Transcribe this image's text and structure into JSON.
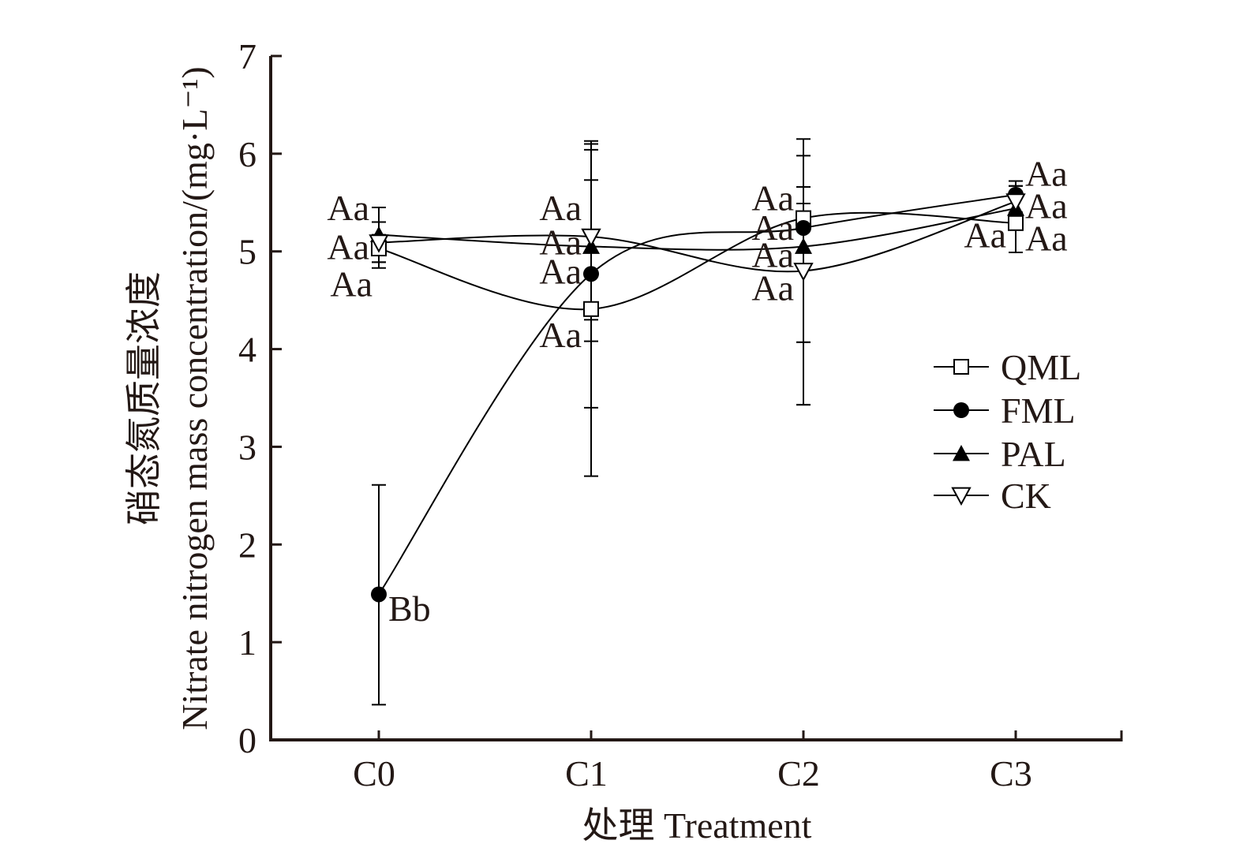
{
  "chart_data": {
    "type": "line",
    "title": "",
    "xlabel": "处理 Treatment",
    "ylabel_cn": "硝态氮质量浓度",
    "ylabel_en": "Nitrate nitrogen mass concentration/(mg·L⁻¹)",
    "categories": [
      "C0",
      "C1",
      "C2",
      "C3"
    ],
    "ylim": [
      0,
      7
    ],
    "yticks": [
      "0",
      "1",
      "2",
      "3",
      "4",
      "5",
      "6",
      "7"
    ],
    "grid": false,
    "legend_position": "right-middle",
    "series": [
      {
        "name": "QML",
        "marker": "open-square",
        "values": [
          5.03,
          4.41,
          5.34,
          5.29
        ],
        "err_low": [
          4.89,
          4.3,
          4.07,
          4.99
        ],
        "err_high": [
          5.17,
          6.1,
          5.98,
          5.4
        ],
        "labels": [
          "Aa",
          "Aa",
          "Aa",
          "Aa"
        ]
      },
      {
        "name": "FML",
        "marker": "filled-circle",
        "values": [
          1.49,
          4.77,
          5.24,
          5.58
        ],
        "err_low": [
          0.36,
          3.4,
          3.43,
          5.36
        ],
        "err_high": [
          2.61,
          6.13,
          6.15,
          5.72
        ],
        "labels": [
          "Bb",
          "Aa",
          "Aa",
          "Aa"
        ]
      },
      {
        "name": "PAL",
        "marker": "filled-triangle-up",
        "values": [
          5.17,
          5.05,
          5.05,
          5.44
        ],
        "err_low": [
          4.83,
          2.7,
          4.07,
          5.36
        ],
        "err_high": [
          5.45,
          6.04,
          5.49,
          5.67
        ],
        "labels": [
          "Aa",
          "Aa",
          "Aa",
          "Aa"
        ]
      },
      {
        "name": "CK",
        "marker": "open-triangle-down",
        "values": [
          5.09,
          5.15,
          4.8,
          5.51
        ],
        "err_low": [
          4.89,
          4.08,
          3.43,
          4.99
        ],
        "err_high": [
          5.3,
          5.73,
          5.66,
          5.67
        ],
        "labels": [
          "Aa",
          "Aa",
          "Aa",
          "Aa"
        ]
      }
    ],
    "annotations": [
      {
        "text": "Aa",
        "category": "C0",
        "value": 5.45,
        "side": "left"
      },
      {
        "text": "Aa",
        "category": "C0",
        "value": 5.05,
        "side": "left"
      },
      {
        "text": "Aa",
        "category": "C0",
        "value": 4.67,
        "side": "left-below"
      },
      {
        "text": "Bb",
        "category": "C0",
        "value": 1.35,
        "side": "right"
      },
      {
        "text": "Aa",
        "category": "C1",
        "value": 5.45,
        "side": "left"
      },
      {
        "text": "Aa",
        "category": "C1",
        "value": 5.1,
        "side": "left"
      },
      {
        "text": "Aa",
        "category": "C1",
        "value": 4.8,
        "side": "left"
      },
      {
        "text": "Aa",
        "category": "C1",
        "value": 4.15,
        "side": "left"
      },
      {
        "text": "Aa",
        "category": "C2",
        "value": 5.55,
        "side": "left"
      },
      {
        "text": "Aa",
        "category": "C2",
        "value": 5.25,
        "side": "left"
      },
      {
        "text": "Aa",
        "category": "C2",
        "value": 4.97,
        "side": "left"
      },
      {
        "text": "Aa",
        "category": "C2",
        "value": 4.63,
        "side": "left"
      },
      {
        "text": "Aa",
        "category": "C3",
        "value": 5.8,
        "side": "right"
      },
      {
        "text": "Aa",
        "category": "C3",
        "value": 5.47,
        "side": "right"
      },
      {
        "text": "Aa",
        "category": "C3",
        "value": 5.14,
        "side": "right"
      },
      {
        "text": "Aa",
        "category": "C3",
        "value": 5.17,
        "side": "left"
      }
    ],
    "colors": {
      "ink": "#231815",
      "line": "#000000",
      "marker_fill_open": "#ffffff",
      "marker_fill_solid": "#000000"
    }
  }
}
